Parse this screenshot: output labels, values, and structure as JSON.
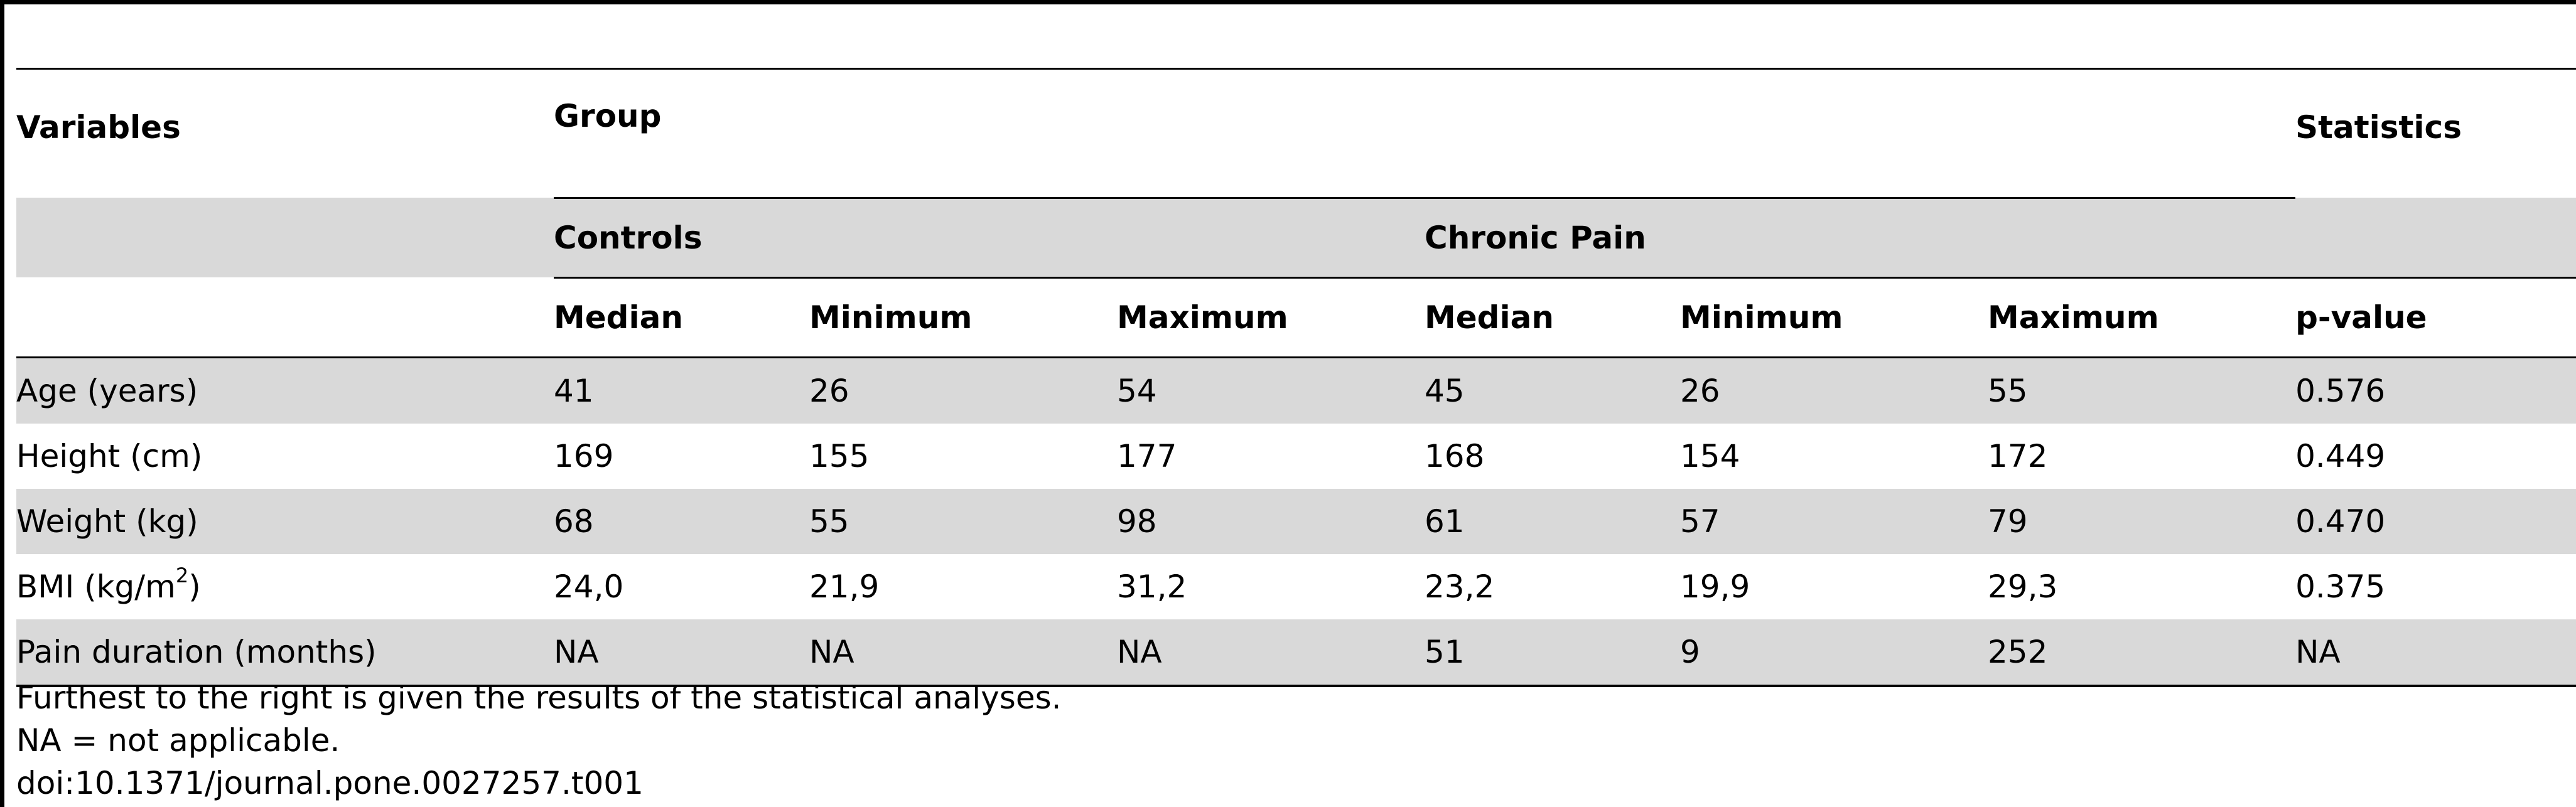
{
  "table": {
    "header": {
      "variables": "Variables",
      "group": "Group",
      "statistics": "Statistics",
      "controls": "Controls",
      "chronic_pain": "Chronic Pain",
      "median": "Median",
      "minimum": "Minimum",
      "maximum": "Maximum",
      "p_value": "p-value"
    },
    "rows": [
      {
        "variable": "Age (years)",
        "c_median": "41",
        "c_min": "26",
        "c_max": "54",
        "p_median": "45",
        "p_min": "26",
        "p_max": "55",
        "p_value": "0.576"
      },
      {
        "variable": "Height (cm)",
        "c_median": "169",
        "c_min": "155",
        "c_max": "177",
        "p_median": "168",
        "p_min": "154",
        "p_max": "172",
        "p_value": "0.449"
      },
      {
        "variable": "Weight (kg)",
        "c_median": "68",
        "c_min": "55",
        "c_max": "98",
        "p_median": "61",
        "p_min": "57",
        "p_max": "79",
        "p_value": "0.470"
      },
      {
        "variable_prefix": "BMI (kg/m",
        "variable_sup": "2",
        "variable_suffix": ")",
        "c_median": "24,0",
        "c_min": "21,9",
        "c_max": "31,2",
        "p_median": "23,2",
        "p_min": "19,9",
        "p_max": "29,3",
        "p_value": "0.375"
      },
      {
        "variable": "Pain duration (months)",
        "c_median": "NA",
        "c_min": "NA",
        "c_max": "NA",
        "p_median": "51",
        "p_min": "9",
        "p_max": "252",
        "p_value": "NA"
      }
    ]
  },
  "footnotes": {
    "line1": "Furthest to the right is given the results of the statistical analyses.",
    "line2": "NA = not applicable.",
    "line3": "doi:10.1371/journal.pone.0027257.t001"
  },
  "colors": {
    "shade": "#d9d9d9",
    "rule": "#000000"
  }
}
